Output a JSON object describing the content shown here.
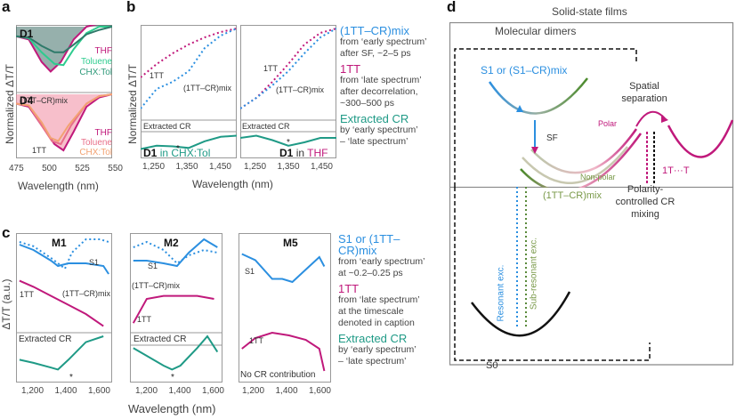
{
  "panels": {
    "a": {
      "label": "a",
      "ylabel": "Normalized ΔT/T",
      "xlabel": "Wavelength (nm)",
      "xticks": [
        "475",
        "500",
        "525",
        "550"
      ],
      "top": {
        "title": "D1",
        "annotation": "(1TT–CR)mix",
        "legend": [
          "THF",
          "Toluene",
          "CHX:Tol"
        ]
      },
      "bottom": {
        "title": "D4",
        "annotation": "1TT",
        "legend": [
          "THF",
          "Toluene",
          "CHX:Tol"
        ]
      }
    },
    "b": {
      "label": "b",
      "ylabel": "Normalized ΔT/T",
      "xlabel": "Wavelength (nm)",
      "xticks": [
        "1,250",
        "1,350",
        "1,450"
      ],
      "left": {
        "annot_tt": "1TT",
        "annot_mix": "(1TT–CR)mix",
        "cr_label": "Extracted CR",
        "sample": "D1",
        "in": "in",
        "solvent": "CHX:Tol"
      },
      "right": {
        "annot_tt": "1TT",
        "annot_mix": "(1TT–CR)mix",
        "cr_label": "Extracted CR",
        "sample": "D1",
        "in": "in",
        "solvent": "THF"
      },
      "legend": [
        {
          "title": "(1TT–CR)mix",
          "desc": [
            "from ‘early spectrum’",
            "after SF, ~2–5 ps"
          ]
        },
        {
          "title": "1TT",
          "desc": [
            "from ‘late spectrum’",
            "after decorrelation,",
            "~300–500 ps"
          ]
        },
        {
          "title": "Extracted CR",
          "desc": [
            "by ‘early spectrum’",
            "– ‘late spectrum’"
          ]
        }
      ]
    },
    "c": {
      "label": "c",
      "ylabel": "ΔT/T (a.u.)",
      "xlabel": "Wavelength (nm)",
      "xticks": [
        "1,200",
        "1,400",
        "1,600"
      ],
      "subpanels": [
        {
          "title": "M1",
          "s1": "S1",
          "mix": "(1TT–CR)mix",
          "tt": "1TT",
          "cr_label": "Extracted CR"
        },
        {
          "title": "M2",
          "s1": "S1",
          "mix": "(1TT–CR)mix",
          "tt": "1TT",
          "cr_label": "Extracted CR"
        },
        {
          "title": "M5",
          "s1": "S1",
          "tt": "1TT",
          "cr_label": "No CR contribution"
        }
      ],
      "legend": [
        {
          "title": "S1 or (1TT–CR)mix",
          "desc": [
            "from ‘early spectrum’",
            "at ~0.2–0.25 ps"
          ]
        },
        {
          "title": "1TT",
          "desc": [
            "from ‘late spectrum’",
            "at the timescale",
            "denoted in caption"
          ]
        },
        {
          "title": "Extracted CR",
          "desc": [
            "by ‘early spectrum’",
            "– ‘late spectrum’"
          ]
        }
      ]
    },
    "d": {
      "label": "d",
      "outer_title": "Solid-state films",
      "inner_title": "Molecular dimers",
      "s1_label": "S1 or (S1–CR)mix",
      "sf": "SF",
      "polar": "Polar",
      "nonpolar": "Non-polar",
      "mix_label": "(1TT–CR)mix",
      "spatial": [
        "Spatial",
        "separation"
      ],
      "tt_sep": "1T···T",
      "polarity": [
        "Polarity-",
        "controlled CR",
        "mixing"
      ],
      "resonant": "Resonant exc.",
      "subresonant": "Sub-resonant exc.",
      "s0": "S0"
    }
  },
  "colors": {
    "blue": "#2b8fe0",
    "magenta": "#c0197b",
    "teal": "#1f9a86",
    "green": "#2ecc8f",
    "darkteal": "#2f7a6a",
    "orange": "#f2a272",
    "olive": "#5a8a3a"
  },
  "chart_data": [
    {
      "type": "line",
      "panel": "a-D1",
      "xlabel": "Wavelength (nm)",
      "ylabel": "Normalized ΔT/T",
      "xlim": [
        475,
        550
      ],
      "series": [
        {
          "name": "THF",
          "x": [
            475,
            485,
            495,
            502,
            510,
            520,
            530,
            540,
            550
          ],
          "y": [
            0.85,
            0.8,
            0.45,
            0.3,
            0.45,
            0.8,
            1.0,
            1.05,
            1.05
          ]
        },
        {
          "name": "Toluene",
          "x": [
            475,
            485,
            495,
            505,
            512,
            520,
            530,
            540,
            550
          ],
          "y": [
            0.85,
            0.82,
            0.6,
            0.42,
            0.4,
            0.65,
            0.9,
            1.0,
            1.0
          ]
        },
        {
          "name": "CHX:Tol",
          "x": [
            475,
            485,
            495,
            505,
            512,
            520,
            530,
            540,
            550
          ],
          "y": [
            0.85,
            0.83,
            0.7,
            0.6,
            0.6,
            0.72,
            0.88,
            0.95,
            1.0
          ]
        }
      ]
    },
    {
      "type": "line",
      "panel": "a-D4",
      "xlabel": "Wavelength (nm)",
      "ylabel": "Normalized ΔT/T",
      "xlim": [
        475,
        550
      ],
      "series": [
        {
          "name": "THF",
          "x": [
            475,
            485,
            495,
            505,
            512,
            520,
            530,
            540,
            550
          ],
          "y": [
            0.85,
            0.8,
            0.5,
            0.2,
            0.1,
            0.4,
            0.8,
            0.95,
            1.0
          ]
        },
        {
          "name": "Toluene",
          "x": [
            475,
            485,
            495,
            503,
            510,
            518,
            530,
            540,
            550
          ],
          "y": [
            0.85,
            0.82,
            0.5,
            0.25,
            0.2,
            0.5,
            0.85,
            0.97,
            1.0
          ]
        },
        {
          "name": "CHX:Tol",
          "x": [
            475,
            485,
            495,
            502,
            508,
            516,
            530,
            540,
            550
          ],
          "y": [
            0.85,
            0.82,
            0.55,
            0.3,
            0.25,
            0.5,
            0.85,
            0.97,
            1.0
          ]
        }
      ]
    },
    {
      "type": "scatter",
      "panel": "b-CHX:Tol",
      "xlim": [
        1200,
        1500
      ],
      "series": [
        {
          "name": "1TT",
          "x": [
            1200,
            1250,
            1300,
            1350,
            1400,
            1450,
            1500
          ],
          "y": [
            0.45,
            0.6,
            0.72,
            0.82,
            0.9,
            0.96,
            1.0
          ]
        },
        {
          "name": "(1TT–CR)mix",
          "x": [
            1200,
            1250,
            1300,
            1350,
            1400,
            1450,
            1500
          ],
          "y": [
            0.1,
            0.32,
            0.4,
            0.52,
            0.78,
            0.92,
            1.0
          ]
        },
        {
          "name": "Extracted CR",
          "x": [
            1200,
            1250,
            1300,
            1350,
            1400,
            1450,
            1500
          ],
          "y": [
            0.3,
            0.45,
            0.42,
            0.35,
            0.65,
            0.85,
            0.9
          ]
        }
      ]
    },
    {
      "type": "scatter",
      "panel": "b-THF",
      "xlim": [
        1200,
        1500
      ],
      "series": [
        {
          "name": "1TT",
          "x": [
            1200,
            1250,
            1300,
            1350,
            1400,
            1450,
            1500
          ],
          "y": [
            0.1,
            0.22,
            0.4,
            0.6,
            0.82,
            0.95,
            1.0
          ]
        },
        {
          "name": "(1TT–CR)mix",
          "x": [
            1200,
            1250,
            1300,
            1350,
            1400,
            1450,
            1500
          ],
          "y": [
            0.1,
            0.22,
            0.36,
            0.52,
            0.72,
            0.9,
            1.0
          ]
        },
        {
          "name": "Extracted CR",
          "x": [
            1200,
            1250,
            1300,
            1350,
            1400,
            1450,
            1500
          ],
          "y": [
            0.8,
            0.9,
            0.7,
            0.45,
            0.6,
            0.8,
            0.8
          ]
        }
      ]
    },
    {
      "type": "line",
      "panel": "c-M1",
      "xlim": [
        1100,
        1650
      ],
      "series": [
        {
          "name": "S1",
          "x": [
            1120,
            1200,
            1300,
            1380,
            1420,
            1500,
            1580,
            1630
          ],
          "y": [
            0.9,
            0.82,
            0.6,
            0.4,
            0.7,
            0.95,
            0.95,
            0.9
          ]
        },
        {
          "name": "(1TT–CR)mix",
          "x": [
            1120,
            1200,
            1300,
            1340,
            1400,
            1500,
            1600,
            1630
          ],
          "y": [
            0.85,
            0.75,
            0.55,
            0.45,
            0.5,
            0.5,
            0.45,
            0.3
          ]
        },
        {
          "name": "1TT",
          "x": [
            1120,
            1200,
            1300,
            1400,
            1500,
            1600
          ],
          "y": [
            0.8,
            0.7,
            0.55,
            0.4,
            0.25,
            0.05
          ]
        },
        {
          "name": "Extracted CR",
          "x": [
            1120,
            1200,
            1300,
            1340,
            1400,
            1500,
            1600
          ],
          "y": [
            0.4,
            0.32,
            0.2,
            0.15,
            0.4,
            0.85,
            1.0
          ]
        }
      ]
    },
    {
      "type": "line",
      "panel": "c-M2",
      "xlim": [
        1100,
        1650
      ],
      "series": [
        {
          "name": "S1",
          "x": [
            1120,
            1200,
            1300,
            1380,
            1450,
            1540,
            1620
          ],
          "y": [
            0.8,
            0.9,
            0.75,
            0.5,
            0.65,
            0.75,
            0.7
          ]
        },
        {
          "name": "(1TT–CR)mix",
          "x": [
            1120,
            1200,
            1300,
            1380,
            1450,
            1540,
            1620
          ],
          "y": [
            0.55,
            0.55,
            0.5,
            0.45,
            0.7,
            0.95,
            0.8
          ]
        },
        {
          "name": "1TT",
          "x": [
            1120,
            1200,
            1300,
            1400,
            1500,
            1600
          ],
          "y": [
            0.1,
            0.5,
            0.55,
            0.55,
            0.55,
            0.5
          ]
        },
        {
          "name": "Extracted CR",
          "x": [
            1120,
            1200,
            1300,
            1350,
            1400,
            1500,
            1560,
            1620
          ],
          "y": [
            0.7,
            0.5,
            0.25,
            0.15,
            0.25,
            0.7,
            1.0,
            0.6
          ]
        }
      ]
    },
    {
      "type": "scatter",
      "panel": "c-M5",
      "xlim": [
        1100,
        1650
      ],
      "series": [
        {
          "name": "S1",
          "x": [
            1120,
            1200,
            1300,
            1360,
            1420,
            1500,
            1580,
            1610
          ],
          "y": [
            0.95,
            0.85,
            0.55,
            0.55,
            0.5,
            0.7,
            0.9,
            0.75
          ]
        },
        {
          "name": "1TT",
          "x": [
            1120,
            1200,
            1300,
            1400,
            1500,
            1580,
            1610
          ],
          "y": [
            0.3,
            0.42,
            0.48,
            0.45,
            0.4,
            0.3,
            0.05
          ]
        }
      ]
    }
  ]
}
